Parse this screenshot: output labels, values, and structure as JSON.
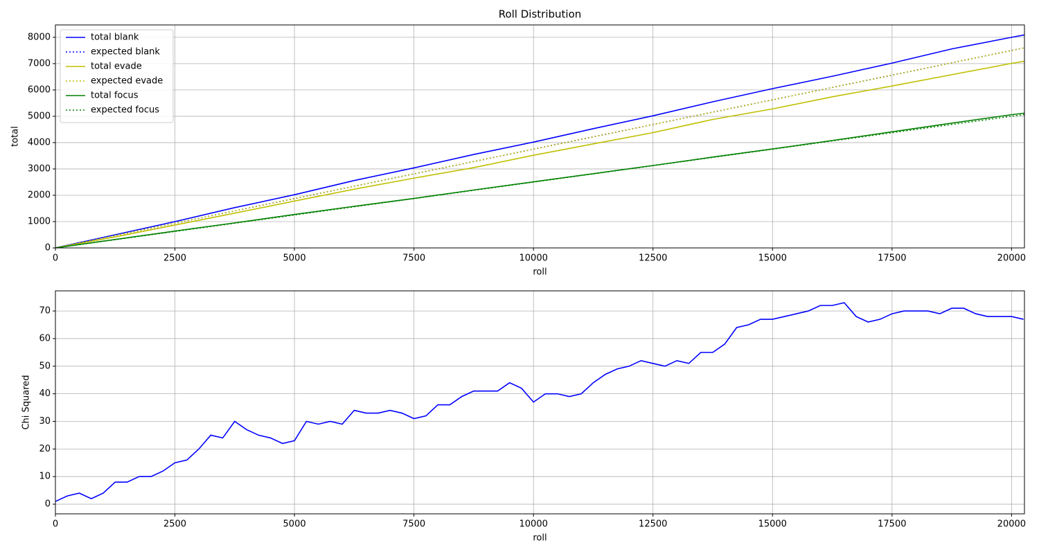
{
  "chart_data": [
    {
      "type": "line",
      "title": "Roll Distribution",
      "x_label": "roll",
      "y_label": "total",
      "x": [
        0,
        1250,
        2500,
        3750,
        5000,
        6250,
        7500,
        8750,
        10000,
        11250,
        12500,
        13750,
        15000,
        16250,
        17500,
        18750,
        20000,
        20270
      ],
      "series": [
        {
          "name": "total blank",
          "color": "#0000ff",
          "linestyle": "solid",
          "values": [
            0,
            500,
            1000,
            1530,
            2020,
            2560,
            3040,
            3550,
            4020,
            4530,
            5020,
            5550,
            6050,
            6520,
            7020,
            7560,
            8000,
            8090
          ]
        },
        {
          "name": "expected blank",
          "color": "#0000ff",
          "linestyle": "dotted",
          "values": [
            0,
            469,
            938,
            1406,
            1875,
            2344,
            2813,
            3281,
            3750,
            4219,
            4688,
            5156,
            5625,
            6094,
            6563,
            7031,
            7500,
            7601
          ]
        },
        {
          "name": "total evade",
          "color": "#bfbf00",
          "linestyle": "solid",
          "values": [
            0,
            420,
            870,
            1320,
            1780,
            2230,
            2650,
            3050,
            3520,
            3950,
            4380,
            4880,
            5280,
            5740,
            6150,
            6580,
            7010,
            7090
          ]
        },
        {
          "name": "expected evade",
          "color": "#bfbf00",
          "linestyle": "dotted",
          "values": [
            0,
            469,
            938,
            1406,
            1875,
            2344,
            2813,
            3281,
            3750,
            4219,
            4688,
            5156,
            5625,
            6094,
            6563,
            7031,
            7500,
            7601
          ]
        },
        {
          "name": "total focus",
          "color": "#008000",
          "linestyle": "solid",
          "values": [
            0,
            320,
            640,
            950,
            1270,
            1580,
            1880,
            2200,
            2510,
            2820,
            3130,
            3450,
            3760,
            4080,
            4410,
            4740,
            5060,
            5120
          ]
        },
        {
          "name": "expected focus",
          "color": "#008000",
          "linestyle": "dotted",
          "values": [
            0,
            313,
            625,
            938,
            1250,
            1563,
            1875,
            2188,
            2500,
            2813,
            3125,
            3438,
            3750,
            4063,
            4375,
            4688,
            5000,
            5068
          ]
        }
      ],
      "xlim": [
        0,
        20270
      ],
      "ylim": [
        0,
        8470
      ],
      "xticks": [
        0,
        2500,
        5000,
        7500,
        10000,
        12500,
        15000,
        17500,
        20000
      ],
      "yticks": [
        0,
        1000,
        2000,
        3000,
        4000,
        5000,
        6000,
        7000,
        8000
      ],
      "grid": true,
      "legend": "upper left"
    },
    {
      "type": "line",
      "x_label": "roll",
      "y_label": "Chi Squared",
      "x": [
        0,
        250,
        500,
        750,
        1000,
        1250,
        1500,
        1750,
        2000,
        2250,
        2500,
        2750,
        3000,
        3250,
        3500,
        3750,
        4000,
        4250,
        4500,
        4750,
        5000,
        5250,
        5500,
        5750,
        6000,
        6250,
        6500,
        6750,
        7000,
        7250,
        7500,
        7750,
        8000,
        8250,
        8500,
        8750,
        9000,
        9250,
        9500,
        9750,
        10000,
        10250,
        10500,
        10750,
        11000,
        11250,
        11500,
        11750,
        12000,
        12250,
        12500,
        12750,
        13000,
        13250,
        13500,
        13750,
        14000,
        14250,
        14500,
        14750,
        15000,
        15250,
        15500,
        15750,
        16000,
        16250,
        16500,
        16750,
        17000,
        17250,
        17500,
        17750,
        18000,
        18250,
        18500,
        18750,
        19000,
        19250,
        19500,
        19750,
        20000,
        20250
      ],
      "series": [
        {
          "color": "#0000ff",
          "linestyle": "solid",
          "values": [
            1,
            3,
            4,
            2,
            4,
            8,
            8,
            10,
            10,
            12,
            15,
            16,
            20,
            25,
            24,
            30,
            27,
            25,
            24,
            22,
            23,
            30,
            29,
            30,
            29,
            34,
            33,
            33,
            34,
            33,
            31,
            32,
            36,
            36,
            39,
            41,
            41,
            41,
            44,
            42,
            37,
            40,
            40,
            39,
            40,
            44,
            47,
            49,
            50,
            52,
            51,
            50,
            52,
            51,
            55,
            55,
            58,
            64,
            65,
            67,
            67,
            68,
            69,
            70,
            72,
            72,
            73,
            68,
            66,
            67,
            69,
            70,
            70,
            70,
            69,
            71,
            71,
            69,
            68,
            68,
            68,
            67
          ]
        }
      ],
      "xlim": [
        0,
        20270
      ],
      "ylim": [
        -3.5,
        77.3
      ],
      "xticks": [
        0,
        2500,
        5000,
        7500,
        10000,
        12500,
        15000,
        17500,
        20000
      ],
      "yticks": [
        0,
        10,
        20,
        30,
        40,
        50,
        60,
        70
      ],
      "grid": true
    }
  ]
}
